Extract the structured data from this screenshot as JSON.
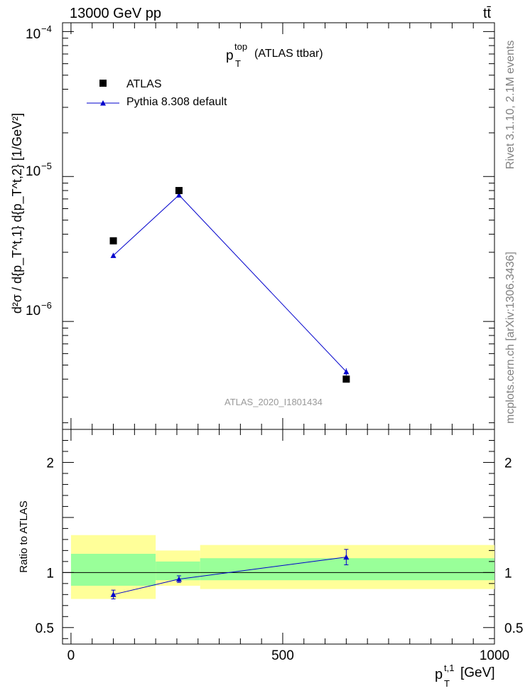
{
  "header": {
    "left": "13000 GeV pp",
    "right": "tt̄"
  },
  "side_labels": {
    "version": "Rivet 3.1.10,  2.1M events",
    "source": "mcplots.cern.ch [arXiv:1306.3436]"
  },
  "chart_data": [
    {
      "type": "scatter",
      "title_main": "p",
      "title_sup": "top",
      "title_sub": "T",
      "title_rest": "(ATLAS ttbar)",
      "watermark": "ATLAS_2020_I1801434",
      "ylabel": "d²σ / d{p_T^t,1} d{p_T^t,2} [1/GeV²]",
      "yscale": "log",
      "ylim": [
        1.8e-07,
        0.000115
      ],
      "xlim": [
        -20,
        1000
      ],
      "ytick_labels": [
        "10",
        "10",
        "10"
      ],
      "ytick_exps": [
        "−4",
        "−5",
        "−6"
      ],
      "legend": [
        {
          "name": "ATLAS",
          "marker": "square",
          "color": "#000000"
        },
        {
          "name": "Pythia 8.308 default",
          "marker": "triangle",
          "color": "#0000cc"
        }
      ],
      "x": [
        100,
        255,
        650
      ],
      "series": [
        {
          "name": "ATLAS",
          "values": [
            3.6e-06,
            8e-06,
            4e-07
          ]
        },
        {
          "name": "Pythia 8.308 default",
          "values": [
            2.85e-06,
            7.45e-06,
            4.5e-07
          ],
          "err": [
            3e-08,
            1e-07,
            2.5e-08
          ]
        }
      ]
    },
    {
      "type": "line",
      "ylabel": "Ratio to ATLAS",
      "xlabel": "p",
      "xlabel_sup": "t,1",
      "xlabel_sub": "T",
      "xlabel_unit": "[GeV]",
      "ylim": [
        0.35,
        2.3
      ],
      "yticks": [
        0.5,
        1,
        2
      ],
      "ytick_labels": [
        "0.5",
        "1",
        "2"
      ],
      "xticks": [
        0,
        500,
        1000
      ],
      "xtick_labels": [
        "0",
        "500",
        "1000"
      ],
      "bands": [
        {
          "x0": 0,
          "x1": 200,
          "yellow": [
            0.76,
            1.34
          ],
          "green": [
            0.88,
            1.17
          ]
        },
        {
          "x0": 200,
          "x1": 305,
          "yellow": [
            0.88,
            1.2
          ],
          "green": [
            0.93,
            1.1
          ]
        },
        {
          "x0": 305,
          "x1": 1000,
          "yellow": [
            0.85,
            1.25
          ],
          "green": [
            0.93,
            1.13
          ]
        }
      ],
      "x": [
        100,
        255,
        650
      ],
      "values": [
        0.8,
        0.94,
        1.14
      ],
      "err": [
        0.04,
        0.03,
        0.07
      ]
    }
  ],
  "colors": {
    "mc": "#0000cc",
    "green_band": "#99ff99",
    "yellow_band": "#ffff99",
    "watermark": "#999999"
  }
}
